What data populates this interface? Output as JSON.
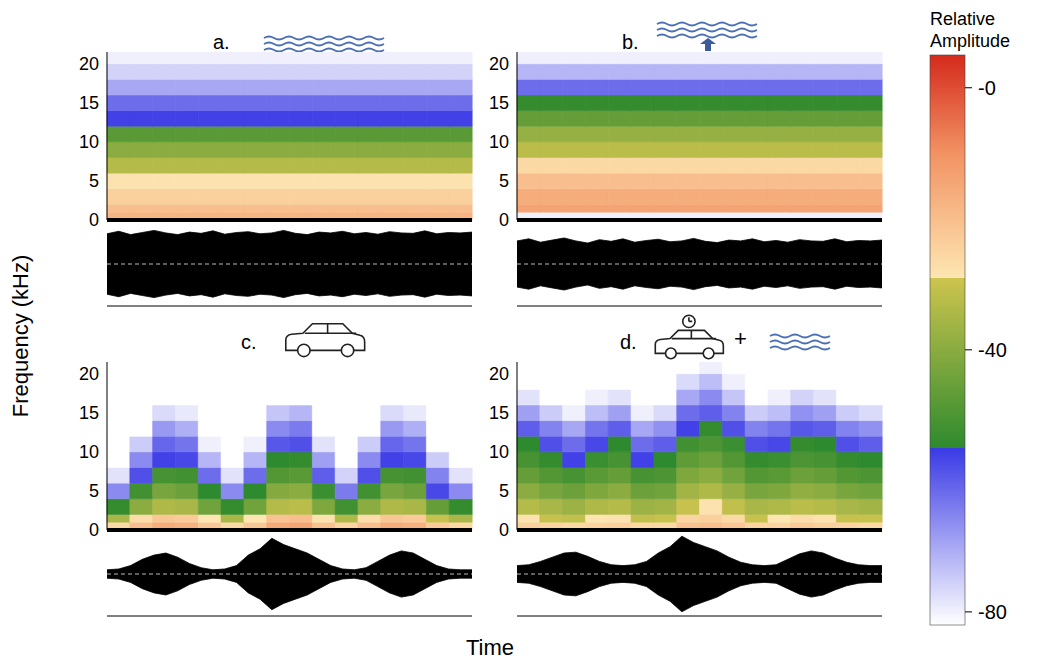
{
  "ylabel": "Frequency (kHz)",
  "xlabel": "Time",
  "colorbar": {
    "title": "Relative Amplitude",
    "range": [
      -82,
      5
    ],
    "ticks": [
      {
        "value": 0,
        "label": "-0"
      },
      -40,
      -80
    ]
  },
  "chart_data": [
    {
      "type": "spectrogram",
      "title": "a.",
      "ylim": [
        0,
        21.5
      ],
      "yticks": [
        0,
        5,
        10,
        15,
        20
      ],
      "tick_labels": "y",
      "freq_bins": [
        0,
        1,
        2,
        4,
        6,
        8,
        10,
        12,
        14,
        16,
        18,
        20,
        21.5
      ],
      "cells": [
        [
          -18,
          -20,
          -24,
          -28,
          -33,
          -40,
          -48,
          -56,
          -62,
          -70,
          -76,
          -80
        ],
        [
          -18,
          -20,
          -24,
          -28,
          -33,
          -40,
          -48,
          -56,
          -62,
          -70,
          -76,
          -80
        ],
        [
          -18,
          -20,
          -24,
          -28,
          -33,
          -40,
          -48,
          -56,
          -62,
          -70,
          -76,
          -80
        ],
        [
          -18,
          -20,
          -24,
          -28,
          -33,
          -40,
          -48,
          -56,
          -62,
          -70,
          -76,
          -80
        ],
        [
          -18,
          -20,
          -24,
          -28,
          -33,
          -40,
          -48,
          -56,
          -62,
          -70,
          -76,
          -80
        ],
        [
          -18,
          -20,
          -24,
          -28,
          -33,
          -40,
          -48,
          -56,
          -62,
          -70,
          -76,
          -80
        ],
        [
          -18,
          -20,
          -24,
          -28,
          -33,
          -40,
          -48,
          -56,
          -62,
          -70,
          -76,
          -80
        ],
        [
          -18,
          -20,
          -24,
          -28,
          -33,
          -40,
          -48,
          -56,
          -62,
          -70,
          -76,
          -80
        ],
        [
          -18,
          -20,
          -24,
          -28,
          -33,
          -40,
          -48,
          -56,
          -62,
          -70,
          -76,
          -80
        ],
        [
          -18,
          -20,
          -24,
          -28,
          -33,
          -40,
          -48,
          -56,
          -62,
          -70,
          -76,
          -80
        ],
        [
          -18,
          -20,
          -24,
          -28,
          -33,
          -40,
          -48,
          -56,
          -62,
          -70,
          -76,
          -80
        ],
        [
          -18,
          -20,
          -24,
          -28,
          -33,
          -40,
          -48,
          -56,
          -62,
          -70,
          -76,
          -80
        ],
        [
          -18,
          -20,
          -24,
          -28,
          -33,
          -40,
          -48,
          -56,
          -62,
          -70,
          -76,
          -80
        ],
        [
          -18,
          -20,
          -24,
          -28,
          -33,
          -40,
          -48,
          -56,
          -62,
          -70,
          -76,
          -80
        ],
        [
          -18,
          -20,
          -24,
          -28,
          -33,
          -40,
          -48,
          -56,
          -62,
          -70,
          -76,
          -80
        ],
        [
          -18,
          -20,
          -24,
          -28,
          -33,
          -40,
          -48,
          -56,
          -62,
          -70,
          -76,
          -80
        ]
      ],
      "waveform": {
        "ylim": [
          -1,
          1
        ],
        "envelope": [
          0.72,
          0.78,
          0.7,
          0.75,
          0.8,
          0.74,
          0.7,
          0.76,
          0.73,
          0.79,
          0.71,
          0.75,
          0.77,
          0.72,
          0.74,
          0.8,
          0.73,
          0.7,
          0.76,
          0.74,
          0.78,
          0.72,
          0.75,
          0.71,
          0.77,
          0.74,
          0.73,
          0.79,
          0.72,
          0.75,
          0.74,
          0.76
        ]
      }
    },
    {
      "type": "spectrogram",
      "title": "b.",
      "ylim": [
        0,
        21.5
      ],
      "yticks": [
        0,
        5,
        10,
        15,
        20
      ],
      "tick_labels": "y",
      "freq_bins": [
        0,
        1,
        2,
        4,
        6,
        8,
        10,
        12,
        14,
        16,
        18,
        20,
        21.5
      ],
      "cells": [
        [
          -80,
          -14,
          -16,
          -20,
          -26,
          -32,
          -38,
          -46,
          -54,
          -62,
          -72,
          -80
        ],
        [
          -80,
          -14,
          -16,
          -20,
          -26,
          -32,
          -38,
          -46,
          -54,
          -62,
          -72,
          -80
        ],
        [
          -80,
          -14,
          -16,
          -20,
          -26,
          -32,
          -38,
          -46,
          -54,
          -62,
          -72,
          -80
        ],
        [
          -80,
          -14,
          -16,
          -20,
          -26,
          -32,
          -38,
          -46,
          -54,
          -62,
          -72,
          -80
        ],
        [
          -80,
          -14,
          -16,
          -20,
          -26,
          -32,
          -38,
          -46,
          -54,
          -62,
          -72,
          -80
        ],
        [
          -80,
          -14,
          -16,
          -20,
          -26,
          -32,
          -38,
          -46,
          -54,
          -62,
          -72,
          -80
        ],
        [
          -80,
          -14,
          -16,
          -20,
          -26,
          -32,
          -38,
          -46,
          -54,
          -62,
          -72,
          -80
        ],
        [
          -80,
          -14,
          -16,
          -20,
          -26,
          -32,
          -38,
          -46,
          -54,
          -62,
          -72,
          -80
        ],
        [
          -80,
          -14,
          -16,
          -20,
          -26,
          -32,
          -38,
          -46,
          -54,
          -62,
          -72,
          -80
        ],
        [
          -80,
          -14,
          -16,
          -20,
          -26,
          -32,
          -38,
          -46,
          -54,
          -62,
          -72,
          -80
        ],
        [
          -80,
          -14,
          -16,
          -20,
          -26,
          -32,
          -38,
          -46,
          -54,
          -62,
          -72,
          -80
        ],
        [
          -80,
          -14,
          -16,
          -20,
          -26,
          -32,
          -38,
          -46,
          -54,
          -62,
          -72,
          -80
        ],
        [
          -80,
          -14,
          -16,
          -20,
          -26,
          -32,
          -38,
          -46,
          -54,
          -62,
          -72,
          -80
        ],
        [
          -80,
          -14,
          -16,
          -20,
          -26,
          -32,
          -38,
          -46,
          -54,
          -62,
          -72,
          -80
        ],
        [
          -80,
          -14,
          -16,
          -20,
          -26,
          -32,
          -38,
          -46,
          -54,
          -62,
          -72,
          -80
        ],
        [
          -80,
          -14,
          -16,
          -20,
          -26,
          -32,
          -38,
          -46,
          -54,
          -62,
          -72,
          -80
        ]
      ],
      "waveform": {
        "ylim": [
          -1,
          1
        ],
        "envelope": [
          0.55,
          0.6,
          0.52,
          0.57,
          0.62,
          0.55,
          0.5,
          0.58,
          0.54,
          0.6,
          0.52,
          0.56,
          0.59,
          0.53,
          0.55,
          0.61,
          0.54,
          0.51,
          0.57,
          0.55,
          0.6,
          0.53,
          0.56,
          0.52,
          0.58,
          0.55,
          0.54,
          0.6,
          0.53,
          0.56,
          0.55,
          0.57
        ]
      }
    },
    {
      "type": "spectrogram",
      "title": "c.",
      "ylim": [
        0,
        21.5
      ],
      "yticks": [
        0,
        5,
        10,
        15,
        20
      ],
      "tick_labels": "y",
      "freq_bins": [
        0,
        1,
        2,
        4,
        6,
        8,
        10,
        12,
        14,
        16,
        18,
        20,
        21.5
      ],
      "cells": [
        [
          -26,
          -35,
          -54,
          -66,
          -78,
          -82,
          -82,
          -82,
          -82,
          -82,
          -82,
          -82
        ],
        [
          -20,
          -27,
          -40,
          -52,
          -58,
          -66,
          -75,
          -82,
          -82,
          -82,
          -82,
          -82
        ],
        [
          -16,
          -22,
          -34,
          -43,
          -51,
          -56,
          -61,
          -68,
          -77,
          -82,
          -82,
          -82
        ],
        [
          -17,
          -23,
          -35,
          -45,
          -52,
          -57,
          -63,
          -71,
          -79,
          -82,
          -82,
          -82
        ],
        [
          -22,
          -29,
          -44,
          -55,
          -62,
          -72,
          -80,
          -82,
          -82,
          -82,
          -82,
          -82
        ],
        [
          -26,
          -35,
          -54,
          -66,
          -78,
          -82,
          -82,
          -82,
          -82,
          -82,
          -82,
          -82
        ],
        [
          -22,
          -29,
          -44,
          -55,
          -62,
          -72,
          -80,
          -82,
          -82,
          -82,
          -82,
          -82
        ],
        [
          -15,
          -21,
          -33,
          -41,
          -49,
          -55,
          -59,
          -66,
          -74,
          -82,
          -82,
          -82
        ],
        [
          -14,
          -20,
          -32,
          -40,
          -48,
          -54,
          -58,
          -64,
          -72,
          -82,
          -82,
          -82
        ],
        [
          -21,
          -28,
          -42,
          -53,
          -60,
          -69,
          -78,
          -82,
          -82,
          -82,
          -82,
          -82
        ],
        [
          -25,
          -34,
          -52,
          -64,
          -76,
          -82,
          -82,
          -82,
          -82,
          -82,
          -82,
          -82
        ],
        [
          -20,
          -27,
          -40,
          -52,
          -58,
          -66,
          -75,
          -82,
          -82,
          -82,
          -82,
          -82
        ],
        [
          -16,
          -22,
          -34,
          -43,
          -51,
          -56,
          -61,
          -68,
          -77,
          -82,
          -82,
          -82
        ],
        [
          -17,
          -23,
          -35,
          -45,
          -52,
          -57,
          -63,
          -71,
          -79,
          -82,
          -82,
          -82
        ],
        [
          -23,
          -30,
          -46,
          -57,
          -65,
          -75,
          -82,
          -82,
          -82,
          -82,
          -82,
          -82
        ],
        [
          -26,
          -35,
          -54,
          -66,
          -78,
          -82,
          -82,
          -82,
          -82,
          -82,
          -82,
          -82
        ]
      ],
      "waveform": {
        "ylim": [
          -1,
          1
        ],
        "envelope": [
          0.1,
          0.12,
          0.2,
          0.35,
          0.45,
          0.5,
          0.4,
          0.25,
          0.15,
          0.1,
          0.12,
          0.2,
          0.45,
          0.6,
          0.85,
          0.7,
          0.6,
          0.5,
          0.35,
          0.2,
          0.12,
          0.1,
          0.15,
          0.3,
          0.45,
          0.55,
          0.5,
          0.35,
          0.2,
          0.12,
          0.1,
          0.1
        ]
      }
    },
    {
      "type": "spectrogram",
      "title": "d.",
      "icon_text": "+",
      "ylim": [
        0,
        21.5
      ],
      "yticks": [
        0,
        5,
        10,
        15,
        20
      ],
      "tick_labels": "y",
      "freq_bins": [
        0,
        1,
        2,
        4,
        6,
        8,
        10,
        12,
        14,
        16,
        18,
        20,
        21.5
      ],
      "cells": [
        [
          -24,
          -28,
          -33,
          -40,
          -46,
          -51,
          -55,
          -60,
          -69,
          -78,
          -82,
          -82
        ],
        [
          -25,
          -30,
          -35,
          -43,
          -49,
          -54,
          -58,
          -65,
          -75,
          -82,
          -82,
          -82
        ],
        [
          -26,
          -31,
          -37,
          -45,
          -51,
          -56,
          -62,
          -70,
          -80,
          -82,
          -82,
          -82
        ],
        [
          -25,
          -29,
          -34,
          -42,
          -48,
          -53,
          -57,
          -63,
          -73,
          -80,
          -82,
          -82
        ],
        [
          -24,
          -28,
          -33,
          -40,
          -46,
          -51,
          -55,
          -60,
          -69,
          -78,
          -82,
          -82
        ],
        [
          -26,
          -31,
          -37,
          -45,
          -51,
          -56,
          -62,
          -70,
          -80,
          -82,
          -82,
          -82
        ],
        [
          -26,
          -30,
          -36,
          -44,
          -50,
          -55,
          -60,
          -67,
          -77,
          -82,
          -82,
          -82
        ],
        [
          -21,
          -25,
          -30,
          -36,
          -42,
          -47,
          -52,
          -56,
          -62,
          -70,
          -77,
          -82
        ],
        [
          -20,
          -24,
          -28,
          -34,
          -40,
          -45,
          -50,
          -54,
          -60,
          -66,
          -73,
          -80
        ],
        [
          -22,
          -26,
          -31,
          -38,
          -44,
          -49,
          -53,
          -58,
          -65,
          -74,
          -80,
          -82
        ],
        [
          -25,
          -30,
          -35,
          -43,
          -49,
          -54,
          -58,
          -65,
          -75,
          -82,
          -82,
          -82
        ],
        [
          -25,
          -29,
          -34,
          -42,
          -48,
          -53,
          -57,
          -63,
          -73,
          -80,
          -82,
          -82
        ],
        [
          -23,
          -27,
          -32,
          -39,
          -45,
          -50,
          -54,
          -59,
          -67,
          -76,
          -82,
          -82
        ],
        [
          -24,
          -28,
          -33,
          -40,
          -46,
          -51,
          -55,
          -60,
          -69,
          -78,
          -82,
          -82
        ],
        [
          -25,
          -30,
          -35,
          -43,
          -49,
          -54,
          -58,
          -65,
          -75,
          -82,
          -82,
          -82
        ],
        [
          -26,
          -30,
          -36,
          -44,
          -50,
          -55,
          -60,
          -67,
          -77,
          -82,
          -82,
          -82
        ]
      ],
      "waveform": {
        "ylim": [
          -1,
          1
        ],
        "envelope": [
          0.2,
          0.22,
          0.3,
          0.4,
          0.5,
          0.52,
          0.42,
          0.3,
          0.22,
          0.2,
          0.22,
          0.3,
          0.5,
          0.65,
          0.9,
          0.75,
          0.65,
          0.55,
          0.4,
          0.28,
          0.22,
          0.2,
          0.22,
          0.35,
          0.48,
          0.55,
          0.5,
          0.38,
          0.28,
          0.22,
          0.2,
          0.2
        ]
      }
    }
  ]
}
